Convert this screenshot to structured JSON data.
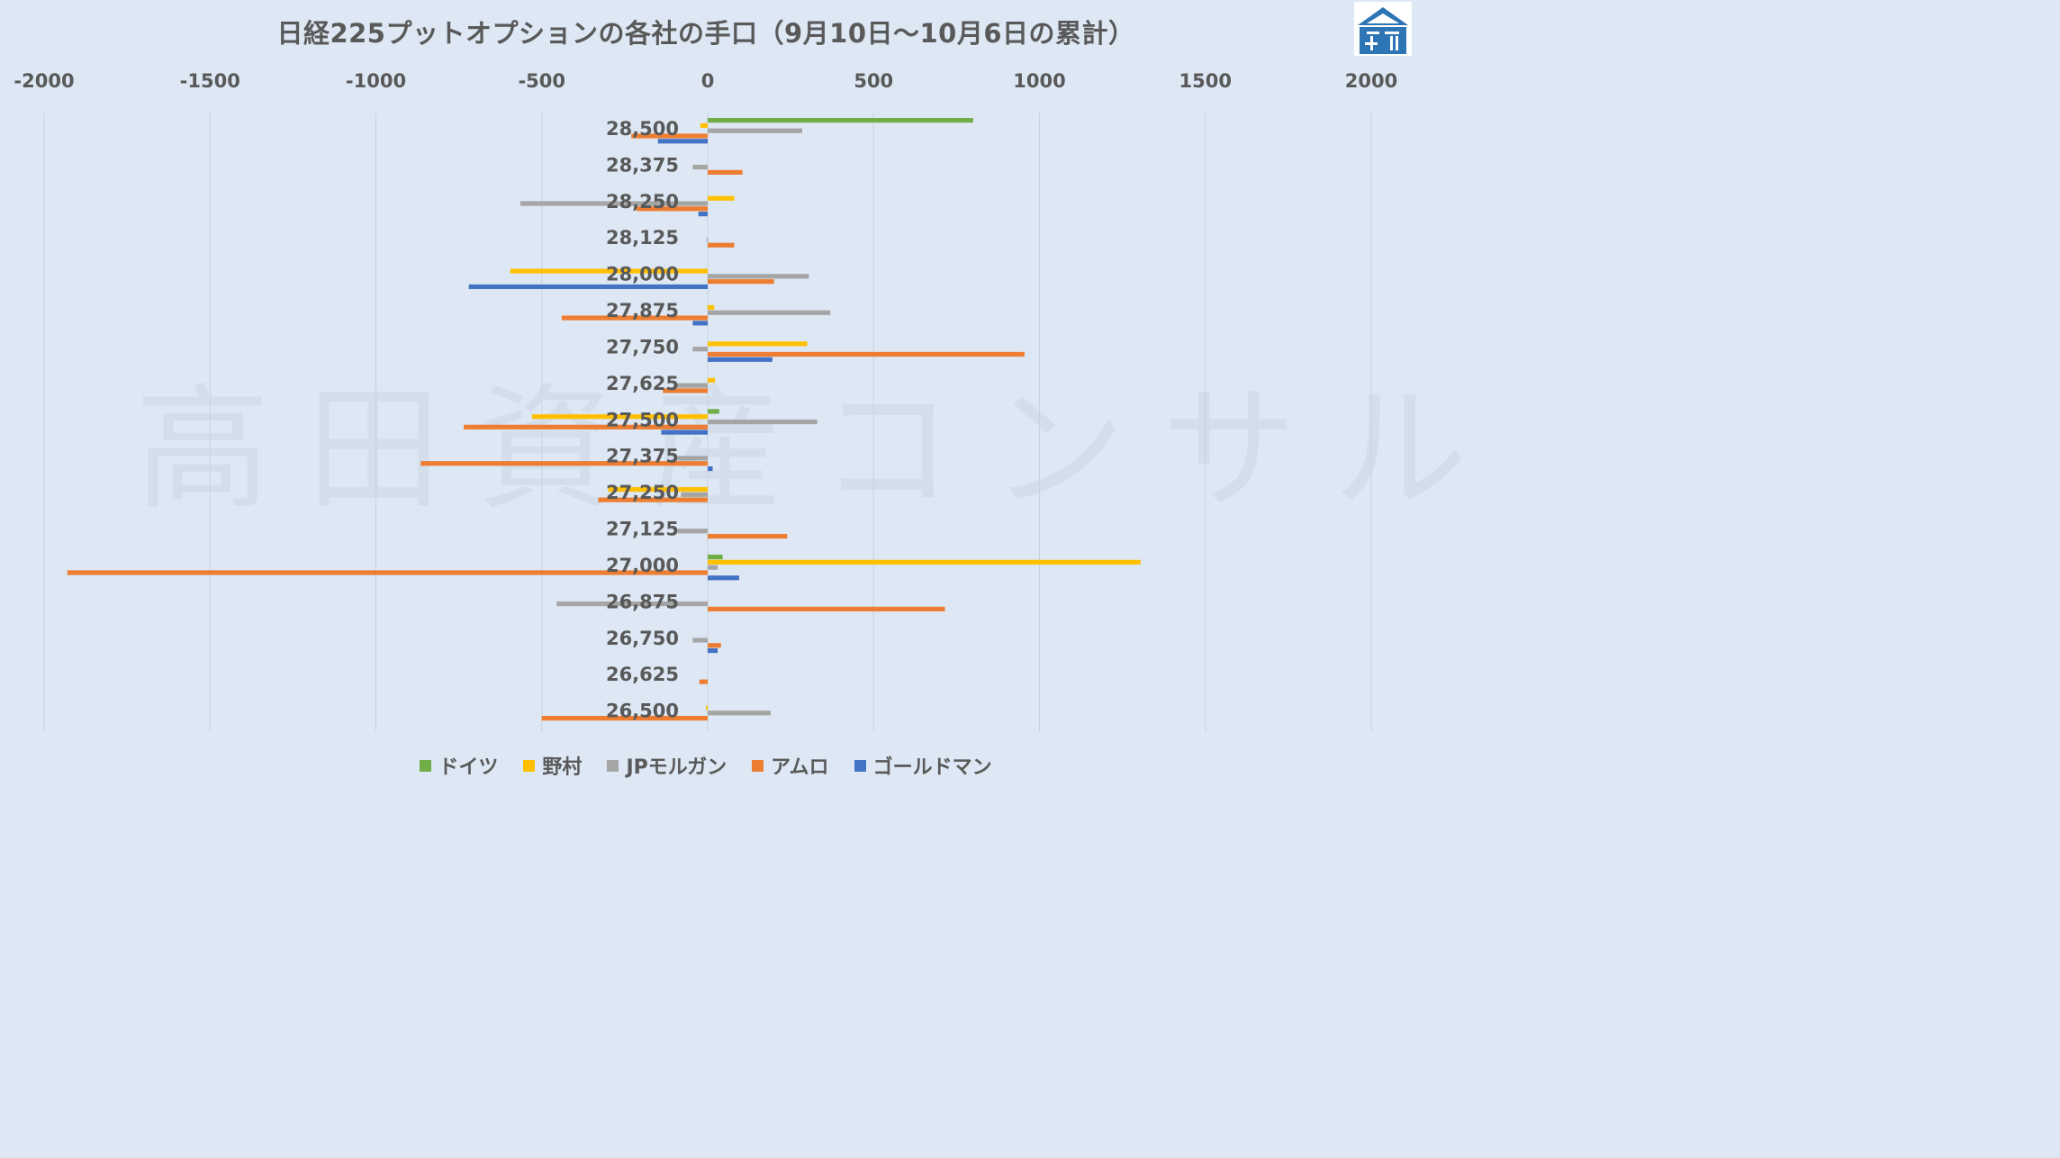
{
  "title": "日経225プットオプションの各社の手口（9月10日～10月6日の累計）",
  "watermark": "高田資産コンサル",
  "chart_data": {
    "type": "bar",
    "orientation": "horizontal",
    "title": "日経225プットオプションの各社の手口（9月10日～10月6日の累計）",
    "xlim": [
      -2000,
      2000
    ],
    "x_ticks": [
      "-2000",
      "-1500",
      "-1000",
      "-500",
      "0",
      "500",
      "1000",
      "1500",
      "2000"
    ],
    "x_tick_values": [
      -2000,
      -1500,
      -1000,
      -500,
      0,
      500,
      1000,
      1500,
      2000
    ],
    "grid": "vertical",
    "legend_position": "bottom",
    "categories": [
      "28,500",
      "28,375",
      "28,250",
      "28,125",
      "28,000",
      "27,875",
      "27,750",
      "27,625",
      "27,500",
      "27,375",
      "27,250",
      "27,125",
      "27,000",
      "26,875",
      "26,750",
      "26,625",
      "26,500"
    ],
    "series": [
      {
        "name": "ドイツ",
        "color": "#70ad47",
        "values": [
          800,
          0,
          0,
          0,
          0,
          0,
          0,
          0,
          35,
          0,
          0,
          0,
          45,
          0,
          0,
          0,
          0
        ]
      },
      {
        "name": "野村",
        "color": "#ffc000",
        "values": [
          -22,
          0,
          80,
          0,
          -595,
          20,
          300,
          22,
          -530,
          0,
          -300,
          0,
          1305,
          0,
          0,
          0,
          -5
        ]
      },
      {
        "name": "JPモルガン",
        "color": "#a5a5a5",
        "values": [
          285,
          -45,
          -565,
          -3,
          305,
          370,
          -45,
          -95,
          330,
          -90,
          -80,
          -90,
          30,
          -455,
          -45,
          0,
          190
        ]
      },
      {
        "name": "アムロ",
        "color": "#ed7d31",
        "values": [
          -230,
          105,
          -215,
          80,
          200,
          -440,
          955,
          -135,
          -735,
          -865,
          -330,
          240,
          -1930,
          715,
          40,
          -25,
          -500
        ]
      },
      {
        "name": "ゴールドマン",
        "color": "#4472c4",
        "values": [
          -150,
          0,
          -28,
          0,
          -720,
          -45,
          195,
          0,
          -140,
          15,
          0,
          0,
          95,
          0,
          30,
          0,
          0
        ]
      }
    ]
  }
}
